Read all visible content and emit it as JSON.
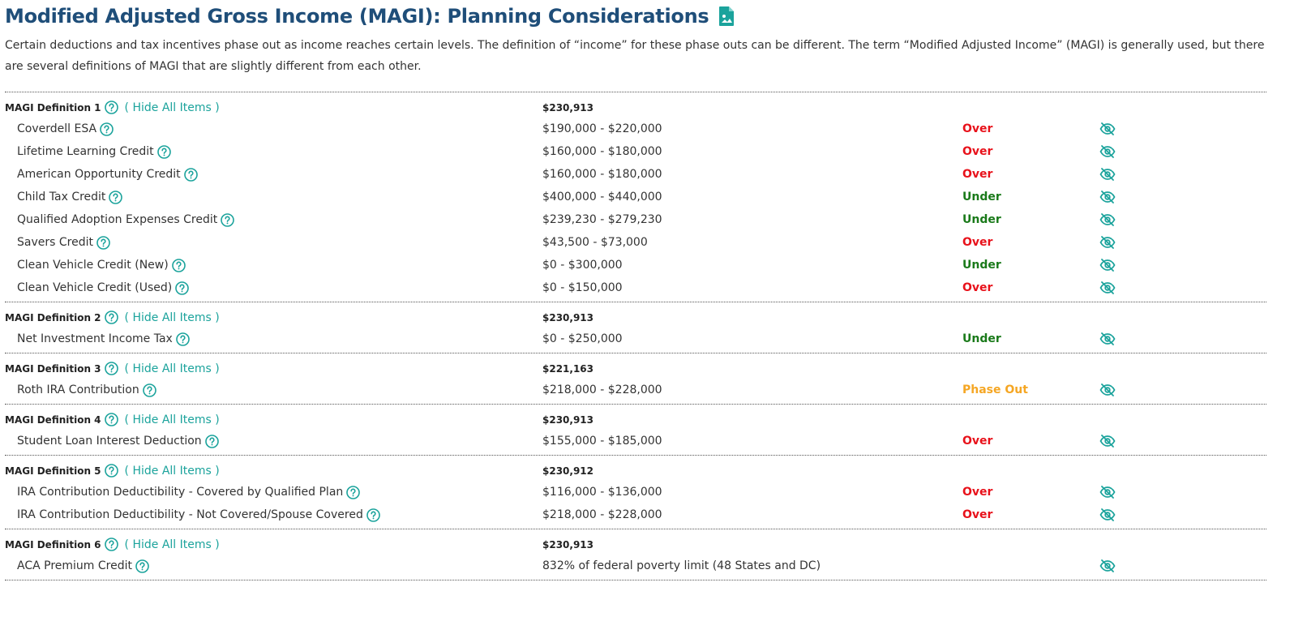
{
  "page": {
    "title": "Modified Adjusted Gross Income (MAGI): Planning Considerations",
    "intro": "Certain deductions and tax incentives phase out as income reaches certain levels. The definition of “income” for these phase outs can be different. The term “Modified Adjusted Income” (MAGI) is generally used, but there are several definitions of MAGI that are slightly different from each other."
  },
  "colors": {
    "accent": "#1ba39c",
    "title": "#1f4e79",
    "over": "#e8121b",
    "under": "#1a7a1a",
    "phase_out": "#f5a623"
  },
  "icons": {
    "title_icon": "document-image-icon",
    "help": "question-circle-icon",
    "row_toggle": "eye-slash-icon"
  },
  "groups": [
    {
      "label": "MAGI Definition 1",
      "hide_label": "( Hide All Items )",
      "value": "$230,913",
      "items": [
        {
          "label": "Coverdell ESA",
          "range": "$190,000 - $220,000",
          "status": "Over"
        },
        {
          "label": "Lifetime Learning Credit",
          "range": "$160,000 - $180,000",
          "status": "Over"
        },
        {
          "label": "American Opportunity Credit",
          "range": "$160,000 - $180,000",
          "status": "Over"
        },
        {
          "label": "Child Tax Credit",
          "range": "$400,000 - $440,000",
          "status": "Under"
        },
        {
          "label": "Qualified Adoption Expenses Credit",
          "range": "$239,230 - $279,230",
          "status": "Under"
        },
        {
          "label": "Savers Credit",
          "range": "$43,500 - $73,000",
          "status": "Over"
        },
        {
          "label": "Clean Vehicle Credit (New)",
          "range": "$0 - $300,000",
          "status": "Under"
        },
        {
          "label": "Clean Vehicle Credit (Used)",
          "range": "$0 - $150,000",
          "status": "Over"
        }
      ]
    },
    {
      "label": "MAGI Definition 2",
      "hide_label": "( Hide All Items )",
      "value": "$230,913",
      "items": [
        {
          "label": "Net Investment Income Tax",
          "range": "$0 - $250,000",
          "status": "Under"
        }
      ]
    },
    {
      "label": "MAGI Definition 3",
      "hide_label": "( Hide All Items )",
      "value": "$221,163",
      "items": [
        {
          "label": "Roth IRA Contribution",
          "range": "$218,000 - $228,000",
          "status": "Phase Out"
        }
      ]
    },
    {
      "label": "MAGI Definition 4",
      "hide_label": "( Hide All Items )",
      "value": "$230,913",
      "items": [
        {
          "label": "Student Loan Interest Deduction",
          "range": "$155,000 - $185,000",
          "status": "Over"
        }
      ]
    },
    {
      "label": "MAGI Definition 5",
      "hide_label": "( Hide All Items )",
      "value": "$230,912",
      "items": [
        {
          "label": "IRA Contribution Deductibility - Covered by Qualified Plan",
          "range": "$116,000 - $136,000",
          "status": "Over"
        },
        {
          "label": "IRA Contribution Deductibility - Not Covered/Spouse Covered",
          "range": "$218,000 - $228,000",
          "status": "Over"
        }
      ]
    },
    {
      "label": "MAGI Definition 6",
      "hide_label": "( Hide All Items )",
      "value": "$230,913",
      "items": [
        {
          "label": "ACA Premium Credit",
          "range": "832% of federal poverty limit (48 States and DC)",
          "status": ""
        }
      ]
    }
  ]
}
